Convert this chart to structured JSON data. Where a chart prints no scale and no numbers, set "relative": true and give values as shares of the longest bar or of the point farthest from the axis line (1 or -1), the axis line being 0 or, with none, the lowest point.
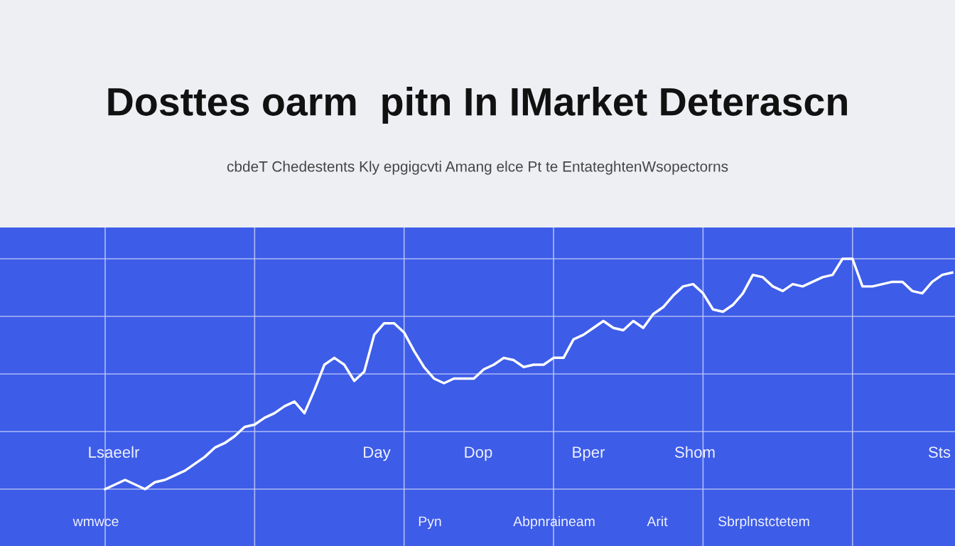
{
  "chart_data": {
    "type": "line",
    "title": "Dosttes oarm  pitn In IMarket Deterascn",
    "subtitle": "cbdeT Chedestents Kly epgigcvti Amang elce Pt te EntateghtenWsopectorns",
    "relative": true,
    "grid": true,
    "categories": [
      null,
      null,
      null,
      null,
      null,
      null,
      null,
      null,
      null,
      null,
      null,
      null,
      null,
      null,
      null,
      null,
      null,
      null,
      null,
      null,
      null,
      null,
      null,
      null,
      null,
      null,
      null,
      null,
      null,
      null,
      null,
      null,
      null,
      null,
      null,
      null,
      null,
      null,
      null,
      null,
      null,
      null,
      null,
      null,
      null,
      null,
      null,
      null,
      null,
      null,
      null,
      null,
      null,
      null,
      null,
      null,
      null,
      null,
      null,
      null,
      null,
      null,
      null,
      null,
      null,
      null,
      null,
      null,
      null,
      null,
      null,
      null,
      null,
      null,
      null,
      null,
      null,
      null,
      null,
      null,
      null,
      null,
      null,
      null,
      null,
      null
    ],
    "series": [
      {
        "color": "#ffffff",
        "values": [
          0,
          0.02,
          0.04,
          0.02,
          0,
          0.03,
          0.04,
          0.06,
          0.08,
          0.11,
          0.14,
          0.18,
          0.2,
          0.23,
          0.27,
          0.28,
          0.31,
          0.33,
          0.36,
          0.38,
          0.33,
          0.43,
          0.54,
          0.57,
          0.54,
          0.47,
          0.51,
          0.67,
          0.72,
          0.72,
          0.68,
          0.6,
          0.53,
          0.48,
          0.46,
          0.48,
          0.48,
          0.48,
          0.52,
          0.54,
          0.57,
          0.56,
          0.53,
          0.54,
          0.54,
          0.57,
          0.57,
          0.65,
          0.67,
          0.7,
          0.73,
          0.7,
          0.69,
          0.73,
          0.7,
          0.76,
          0.79,
          0.84,
          0.88,
          0.89,
          0.85,
          0.78,
          0.77,
          0.8,
          0.85,
          0.93,
          0.92,
          0.88,
          0.86,
          0.89,
          0.88,
          0.9,
          0.92,
          0.93,
          1,
          1,
          0.88,
          0.88,
          0.89,
          0.9,
          0.9,
          0.86,
          0.85,
          0.9,
          0.93,
          0.94
        ]
      }
    ],
    "annotations": [
      "Lsaeelr",
      "Day",
      "Dop",
      "Bper",
      "Shom",
      "Sts",
      "wmwce",
      "Pyn",
      "Abpnraineam",
      "Arit",
      "Sbrplnstctetem"
    ]
  }
}
